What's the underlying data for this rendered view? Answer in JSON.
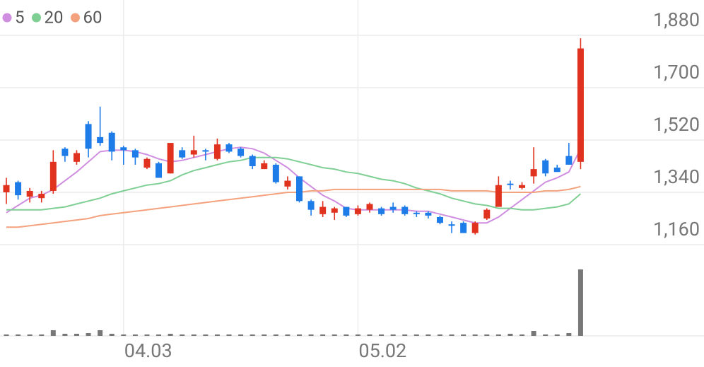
{
  "chart_data": {
    "type": "candlestick",
    "categories": [
      null,
      null,
      null,
      null,
      null,
      null,
      null,
      null,
      null,
      null,
      "04.03",
      null,
      null,
      null,
      null,
      null,
      null,
      null,
      null,
      null,
      null,
      null,
      null,
      null,
      null,
      null,
      null,
      null,
      null,
      null,
      "05.02",
      null,
      null,
      null,
      null,
      null,
      null,
      null,
      null,
      null,
      null,
      null,
      null,
      null,
      null,
      null,
      null,
      null,
      null,
      null
    ],
    "ohlc": {
      "open": [
        1340,
        1375,
        1325,
        1320,
        1345,
        1490,
        1445,
        1575,
        1530,
        1545,
        1495,
        1485,
        1425,
        1440,
        1405,
        1485,
        1470,
        1485,
        1455,
        1505,
        1490,
        1465,
        1420,
        1435,
        1360,
        1395,
        1310,
        1265,
        1270,
        1290,
        1265,
        1280,
        1285,
        1290,
        1290,
        1270,
        1270,
        1255,
        1230,
        1235,
        1200,
        1250,
        1290,
        1370,
        1355,
        1395,
        1450,
        1425,
        1465,
        1445
      ],
      "high": [
        1390,
        1380,
        1355,
        1345,
        1485,
        1495,
        1485,
        1585,
        1635,
        1550,
        1500,
        1490,
        1460,
        1445,
        1510,
        1495,
        1535,
        1490,
        1525,
        1510,
        1495,
        1470,
        1450,
        1440,
        1395,
        1395,
        1315,
        1310,
        1290,
        1290,
        1295,
        1305,
        1290,
        1305,
        1295,
        1275,
        1275,
        1260,
        1240,
        1240,
        1240,
        1285,
        1395,
        1380,
        1375,
        1495,
        1455,
        1435,
        1510,
        1870
      ],
      "low": [
        1300,
        1315,
        1305,
        1305,
        1335,
        1445,
        1435,
        1460,
        1500,
        1450,
        1435,
        1435,
        1420,
        1390,
        1405,
        1455,
        1460,
        1450,
        1450,
        1475,
        1460,
        1420,
        1420,
        1370,
        1350,
        1305,
        1260,
        1255,
        1245,
        1255,
        1260,
        1270,
        1260,
        1270,
        1260,
        1255,
        1250,
        1230,
        1200,
        1200,
        1195,
        1245,
        1290,
        1350,
        1350,
        1370,
        1395,
        1410,
        1435,
        1420
      ],
      "close": [
        1365,
        1330,
        1345,
        1335,
        1445,
        1465,
        1475,
        1490,
        1510,
        1480,
        1485,
        1460,
        1455,
        1390,
        1510,
        1460,
        1485,
        1480,
        1505,
        1480,
        1465,
        1430,
        1440,
        1375,
        1380,
        1310,
        1280,
        1290,
        1285,
        1260,
        1285,
        1300,
        1265,
        1280,
        1265,
        1265,
        1260,
        1235,
        1225,
        1200,
        1235,
        1280,
        1365,
        1365,
        1365,
        1420,
        1405,
        1410,
        1435,
        1835
      ]
    },
    "up_color": "#e0321e",
    "down_color": "#1e7ce8",
    "series": [
      {
        "name": "5",
        "color": "#d08ee0",
        "values": [
          1270,
          1295,
          1320,
          1330,
          1350,
          1380,
          1410,
          1445,
          1480,
          1485,
          1485,
          1480,
          1470,
          1455,
          1445,
          1450,
          1460,
          1470,
          1480,
          1490,
          1495,
          1490,
          1475,
          1450,
          1425,
          1390,
          1360,
          1330,
          1310,
          1285,
          1280,
          1280,
          1280,
          1280,
          1280,
          1275,
          1275,
          1265,
          1255,
          1245,
          1235,
          1235,
          1255,
          1285,
          1315,
          1345,
          1375,
          1390,
          1410,
          1490
        ]
      },
      {
        "name": "20",
        "color": "#7fcf94",
        "values": [
          1280,
          1280,
          1280,
          1280,
          1285,
          1290,
          1300,
          1310,
          1320,
          1335,
          1345,
          1355,
          1365,
          1370,
          1380,
          1400,
          1415,
          1425,
          1435,
          1445,
          1450,
          1460,
          1460,
          1460,
          1455,
          1445,
          1435,
          1425,
          1420,
          1410,
          1405,
          1395,
          1385,
          1380,
          1370,
          1355,
          1345,
          1335,
          1320,
          1310,
          1300,
          1295,
          1285,
          1285,
          1280,
          1280,
          1285,
          1290,
          1300,
          1335
        ]
      },
      {
        "name": "60",
        "color": "#f4a27e",
        "values": [
          1220,
          1220,
          1225,
          1230,
          1235,
          1240,
          1245,
          1250,
          1260,
          1265,
          1270,
          1275,
          1280,
          1285,
          1290,
          1295,
          1300,
          1305,
          1310,
          1315,
          1320,
          1325,
          1330,
          1335,
          1340,
          1340,
          1345,
          1345,
          1350,
          1350,
          1350,
          1350,
          1350,
          1350,
          1350,
          1350,
          1350,
          1350,
          1345,
          1345,
          1345,
          1345,
          1340,
          1340,
          1340,
          1340,
          1345,
          1345,
          1350,
          1360
        ]
      }
    ],
    "volume": {
      "color": "#777777",
      "ylim": [
        0,
        100
      ],
      "values": [
        2,
        2,
        2,
        2,
        8,
        3,
        3,
        4,
        8,
        3,
        2,
        2,
        2,
        2,
        3,
        2,
        2,
        2,
        2,
        2,
        2,
        2,
        2,
        2,
        2,
        2,
        2,
        2,
        2,
        2,
        2,
        2,
        2,
        2,
        2,
        2,
        2,
        2,
        2,
        2,
        2,
        2,
        2,
        3,
        2,
        7,
        2,
        2,
        4,
        94
      ]
    },
    "ylim": [
      1160,
      1880
    ],
    "yticks": [
      {
        "value": 1880,
        "label": "1,880"
      },
      {
        "value": 1700,
        "label": "1,700"
      },
      {
        "value": 1520,
        "label": "1,520"
      },
      {
        "value": 1340,
        "label": "1,340"
      },
      {
        "value": 1160,
        "label": "1,160"
      }
    ],
    "grid": true,
    "legend": "top-left"
  }
}
